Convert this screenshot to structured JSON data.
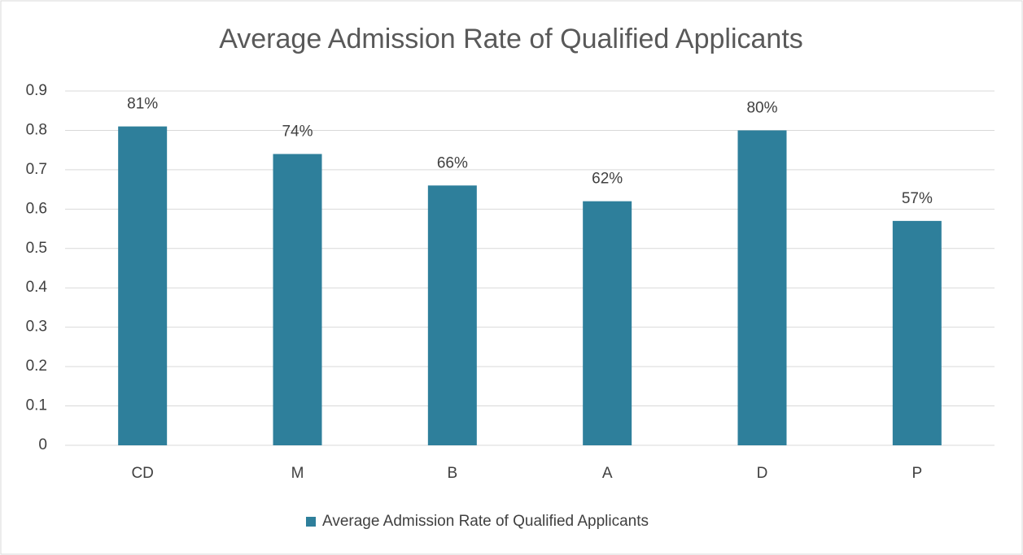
{
  "chart_data": {
    "type": "bar",
    "title": "Average Admission Rate of Qualified Applicants",
    "categories": [
      "CD",
      "M",
      "B",
      "A",
      "D",
      "P"
    ],
    "series": [
      {
        "name": "Average Admission Rate of Qualified Applicants",
        "color": "#2e7f9b",
        "values": [
          0.81,
          0.74,
          0.66,
          0.62,
          0.8,
          0.57
        ],
        "value_labels": [
          "81%",
          "74%",
          "66%",
          "62%",
          "80%",
          "57%"
        ]
      }
    ],
    "ylim": [
      0,
      0.9
    ],
    "yticks": [
      0,
      0.1,
      0.2,
      0.3,
      0.4,
      0.5,
      0.6,
      0.7,
      0.8,
      0.9
    ],
    "grid": true,
    "legend": "bottom"
  }
}
